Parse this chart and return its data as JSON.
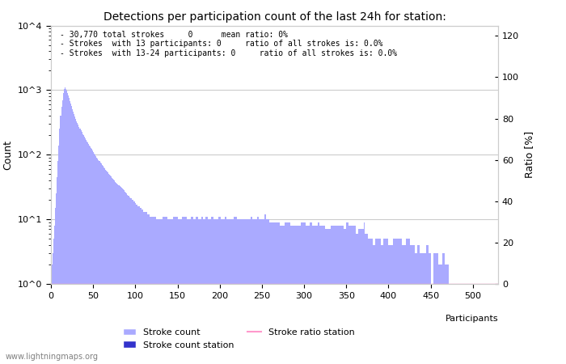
{
  "title": "Detections per participation count of the last 24h for station:",
  "xlabel": "Participants",
  "ylabel_left": "Count",
  "ylabel_right": "Ratio [%]",
  "annotation_lines": [
    "- 30,770 total strokes     0      mean ratio: 0%",
    "- Strokes  with 13 participants: 0     ratio of all strokes is: 0.0%",
    "- Strokes  with 13-24 participants: 0     ratio of all strokes is: 0.0%"
  ],
  "watermark": "www.lightningmaps.org",
  "bar_color": "#aaaaff",
  "bar_color_station": "#3333cc",
  "ratio_line_color": "#ff99cc",
  "grid_color": "#cccccc",
  "background_color": "#ffffff",
  "ylim_log": [
    1,
    10000
  ],
  "ylim_right": [
    0,
    125
  ],
  "xlim": [
    0,
    530
  ],
  "xticks": [
    0,
    50,
    100,
    150,
    200,
    250,
    300,
    350,
    400,
    450,
    500
  ],
  "ytick_vals": [
    1,
    10,
    100,
    1000,
    10000
  ],
  "ytick_labels": [
    "10^0",
    "10^1",
    "10^2",
    "10^3",
    "10^4"
  ],
  "right_yticks": [
    0,
    20,
    40,
    60,
    80,
    100,
    120
  ],
  "right_ytick_labels": [
    "0",
    "20",
    "40",
    "60",
    "80",
    "100",
    "120"
  ],
  "bar_data": [
    [
      1,
      2
    ],
    [
      2,
      3
    ],
    [
      3,
      5
    ],
    [
      4,
      8
    ],
    [
      5,
      15
    ],
    [
      6,
      25
    ],
    [
      7,
      45
    ],
    [
      8,
      80
    ],
    [
      9,
      140
    ],
    [
      10,
      250
    ],
    [
      11,
      400
    ],
    [
      12,
      550
    ],
    [
      13,
      700
    ],
    [
      14,
      900
    ],
    [
      15,
      1050
    ],
    [
      16,
      1100
    ],
    [
      17,
      1050
    ],
    [
      18,
      980
    ],
    [
      19,
      900
    ],
    [
      20,
      820
    ],
    [
      21,
      750
    ],
    [
      22,
      680
    ],
    [
      23,
      620
    ],
    [
      24,
      560
    ],
    [
      25,
      500
    ],
    [
      26,
      460
    ],
    [
      27,
      420
    ],
    [
      28,
      390
    ],
    [
      29,
      360
    ],
    [
      30,
      330
    ],
    [
      31,
      310
    ],
    [
      32,
      290
    ],
    [
      33,
      270
    ],
    [
      34,
      255
    ],
    [
      35,
      240
    ],
    [
      36,
      225
    ],
    [
      37,
      210
    ],
    [
      38,
      200
    ],
    [
      39,
      190
    ],
    [
      40,
      180
    ],
    [
      41,
      170
    ],
    [
      42,
      162
    ],
    [
      43,
      155
    ],
    [
      44,
      148
    ],
    [
      45,
      140
    ],
    [
      46,
      133
    ],
    [
      47,
      127
    ],
    [
      48,
      122
    ],
    [
      49,
      116
    ],
    [
      50,
      110
    ],
    [
      51,
      105
    ],
    [
      52,
      100
    ],
    [
      53,
      95
    ],
    [
      54,
      91
    ],
    [
      55,
      87
    ],
    [
      56,
      83
    ],
    [
      57,
      79
    ],
    [
      58,
      76
    ],
    [
      59,
      73
    ],
    [
      60,
      70
    ],
    [
      61,
      67
    ],
    [
      62,
      64
    ],
    [
      63,
      62
    ],
    [
      64,
      59
    ],
    [
      65,
      57
    ],
    [
      66,
      55
    ],
    [
      67,
      53
    ],
    [
      68,
      51
    ],
    [
      69,
      49
    ],
    [
      70,
      47
    ],
    [
      71,
      46
    ],
    [
      72,
      44
    ],
    [
      73,
      43
    ],
    [
      74,
      41
    ],
    [
      75,
      40
    ],
    [
      76,
      38
    ],
    [
      77,
      37
    ],
    [
      78,
      36
    ],
    [
      79,
      35
    ],
    [
      80,
      34
    ],
    [
      81,
      33
    ],
    [
      82,
      32
    ],
    [
      83,
      31
    ],
    [
      84,
      30
    ],
    [
      85,
      29
    ],
    [
      86,
      28
    ],
    [
      87,
      27
    ],
    [
      88,
      26
    ],
    [
      89,
      25
    ],
    [
      90,
      24
    ],
    [
      91,
      23
    ],
    [
      92,
      23
    ],
    [
      93,
      22
    ],
    [
      94,
      21
    ],
    [
      95,
      21
    ],
    [
      96,
      20
    ],
    [
      97,
      20
    ],
    [
      98,
      19
    ],
    [
      99,
      19
    ],
    [
      100,
      18
    ],
    [
      101,
      17
    ],
    [
      102,
      17
    ],
    [
      103,
      16
    ],
    [
      104,
      16
    ],
    [
      105,
      15
    ],
    [
      106,
      15
    ],
    [
      107,
      14
    ],
    [
      108,
      14
    ],
    [
      109,
      13
    ],
    [
      110,
      13
    ],
    [
      111,
      13
    ],
    [
      112,
      13
    ],
    [
      113,
      13
    ],
    [
      114,
      12
    ],
    [
      115,
      12
    ],
    [
      116,
      12
    ],
    [
      117,
      11
    ],
    [
      118,
      11
    ],
    [
      119,
      11
    ],
    [
      120,
      11
    ],
    [
      121,
      11
    ],
    [
      122,
      11
    ],
    [
      123,
      11
    ],
    [
      124,
      11
    ],
    [
      125,
      10
    ],
    [
      126,
      10
    ],
    [
      127,
      10
    ],
    [
      128,
      10
    ],
    [
      129,
      10
    ],
    [
      130,
      10
    ],
    [
      131,
      10
    ],
    [
      132,
      11
    ],
    [
      133,
      11
    ],
    [
      134,
      11
    ],
    [
      135,
      11
    ],
    [
      136,
      11
    ],
    [
      137,
      11
    ],
    [
      138,
      10
    ],
    [
      139,
      10
    ],
    [
      140,
      10
    ],
    [
      141,
      10
    ],
    [
      142,
      10
    ],
    [
      143,
      10
    ],
    [
      144,
      10
    ],
    [
      145,
      11
    ],
    [
      146,
      11
    ],
    [
      147,
      11
    ],
    [
      148,
      11
    ],
    [
      149,
      11
    ],
    [
      150,
      10
    ],
    [
      151,
      10
    ],
    [
      152,
      10
    ],
    [
      153,
      10
    ],
    [
      154,
      10
    ],
    [
      155,
      11
    ],
    [
      156,
      11
    ],
    [
      157,
      11
    ],
    [
      158,
      11
    ],
    [
      159,
      11
    ],
    [
      160,
      11
    ],
    [
      161,
      10
    ],
    [
      162,
      10
    ],
    [
      163,
      10
    ],
    [
      164,
      10
    ],
    [
      165,
      10
    ],
    [
      166,
      11
    ],
    [
      167,
      11
    ],
    [
      168,
      11
    ],
    [
      169,
      10
    ],
    [
      170,
      10
    ],
    [
      171,
      10
    ],
    [
      172,
      11
    ],
    [
      173,
      11
    ],
    [
      174,
      10
    ],
    [
      175,
      10
    ],
    [
      176,
      10
    ],
    [
      177,
      10
    ],
    [
      178,
      11
    ],
    [
      179,
      11
    ],
    [
      180,
      10
    ],
    [
      181,
      10
    ],
    [
      182,
      10
    ],
    [
      183,
      11
    ],
    [
      184,
      11
    ],
    [
      185,
      11
    ],
    [
      186,
      10
    ],
    [
      187,
      10
    ],
    [
      188,
      10
    ],
    [
      189,
      10
    ],
    [
      190,
      11
    ],
    [
      191,
      11
    ],
    [
      192,
      11
    ],
    [
      193,
      10
    ],
    [
      194,
      10
    ],
    [
      195,
      10
    ],
    [
      196,
      10
    ],
    [
      197,
      10
    ],
    [
      198,
      11
    ],
    [
      199,
      11
    ],
    [
      200,
      11
    ],
    [
      201,
      10
    ],
    [
      202,
      10
    ],
    [
      203,
      10
    ],
    [
      204,
      10
    ],
    [
      205,
      10
    ],
    [
      206,
      11
    ],
    [
      207,
      11
    ],
    [
      208,
      10
    ],
    [
      209,
      10
    ],
    [
      210,
      10
    ],
    [
      211,
      10
    ],
    [
      212,
      10
    ],
    [
      213,
      10
    ],
    [
      214,
      10
    ],
    [
      215,
      10
    ],
    [
      216,
      10
    ],
    [
      217,
      11
    ],
    [
      218,
      11
    ],
    [
      219,
      11
    ],
    [
      220,
      10
    ],
    [
      221,
      10
    ],
    [
      222,
      10
    ],
    [
      223,
      10
    ],
    [
      224,
      10
    ],
    [
      225,
      10
    ],
    [
      226,
      10
    ],
    [
      227,
      10
    ],
    [
      228,
      10
    ],
    [
      229,
      10
    ],
    [
      230,
      10
    ],
    [
      231,
      10
    ],
    [
      232,
      10
    ],
    [
      233,
      10
    ],
    [
      234,
      10
    ],
    [
      235,
      10
    ],
    [
      236,
      10
    ],
    [
      237,
      11
    ],
    [
      238,
      11
    ],
    [
      239,
      10
    ],
    [
      240,
      10
    ],
    [
      241,
      10
    ],
    [
      242,
      10
    ],
    [
      243,
      10
    ],
    [
      244,
      11
    ],
    [
      245,
      11
    ],
    [
      246,
      10
    ],
    [
      247,
      10
    ],
    [
      248,
      10
    ],
    [
      249,
      10
    ],
    [
      250,
      10
    ],
    [
      251,
      10
    ],
    [
      252,
      10
    ],
    [
      253,
      12
    ],
    [
      254,
      12
    ],
    [
      255,
      10
    ],
    [
      256,
      10
    ],
    [
      257,
      10
    ],
    [
      258,
      10
    ],
    [
      259,
      9
    ],
    [
      260,
      9
    ],
    [
      261,
      9
    ],
    [
      262,
      9
    ],
    [
      263,
      9
    ],
    [
      264,
      9
    ],
    [
      265,
      9
    ],
    [
      266,
      9
    ],
    [
      267,
      9
    ],
    [
      268,
      9
    ],
    [
      269,
      9
    ],
    [
      270,
      9
    ],
    [
      271,
      8
    ],
    [
      272,
      8
    ],
    [
      273,
      8
    ],
    [
      274,
      8
    ],
    [
      275,
      8
    ],
    [
      276,
      8
    ],
    [
      277,
      9
    ],
    [
      278,
      9
    ],
    [
      279,
      9
    ],
    [
      280,
      9
    ],
    [
      281,
      9
    ],
    [
      282,
      9
    ],
    [
      283,
      9
    ],
    [
      284,
      8
    ],
    [
      285,
      8
    ],
    [
      286,
      8
    ],
    [
      287,
      8
    ],
    [
      288,
      8
    ],
    [
      289,
      8
    ],
    [
      290,
      8
    ],
    [
      291,
      8
    ],
    [
      292,
      8
    ],
    [
      293,
      8
    ],
    [
      294,
      8
    ],
    [
      295,
      8
    ],
    [
      296,
      9
    ],
    [
      297,
      9
    ],
    [
      298,
      9
    ],
    [
      299,
      9
    ],
    [
      300,
      9
    ],
    [
      301,
      9
    ],
    [
      302,
      8
    ],
    [
      303,
      8
    ],
    [
      304,
      8
    ],
    [
      305,
      8
    ],
    [
      306,
      8
    ],
    [
      307,
      9
    ],
    [
      308,
      9
    ],
    [
      309,
      9
    ],
    [
      310,
      8
    ],
    [
      311,
      8
    ],
    [
      312,
      8
    ],
    [
      313,
      8
    ],
    [
      314,
      8
    ],
    [
      315,
      8
    ],
    [
      316,
      9
    ],
    [
      317,
      9
    ],
    [
      318,
      8
    ],
    [
      319,
      8
    ],
    [
      320,
      8
    ],
    [
      321,
      8
    ],
    [
      322,
      8
    ],
    [
      323,
      8
    ],
    [
      324,
      8
    ],
    [
      325,
      7
    ],
    [
      326,
      7
    ],
    [
      327,
      7
    ],
    [
      328,
      7
    ],
    [
      329,
      7
    ],
    [
      330,
      7
    ],
    [
      331,
      7
    ],
    [
      332,
      8
    ],
    [
      333,
      8
    ],
    [
      334,
      8
    ],
    [
      335,
      8
    ],
    [
      336,
      8
    ],
    [
      337,
      8
    ],
    [
      338,
      8
    ],
    [
      339,
      8
    ],
    [
      340,
      8
    ],
    [
      341,
      8
    ],
    [
      342,
      8
    ],
    [
      343,
      8
    ],
    [
      344,
      8
    ],
    [
      345,
      8
    ],
    [
      346,
      8
    ],
    [
      347,
      7
    ],
    [
      348,
      7
    ],
    [
      349,
      7
    ],
    [
      350,
      9
    ],
    [
      351,
      9
    ],
    [
      352,
      9
    ],
    [
      353,
      8
    ],
    [
      354,
      8
    ],
    [
      355,
      8
    ],
    [
      356,
      8
    ],
    [
      357,
      8
    ],
    [
      358,
      8
    ],
    [
      359,
      8
    ],
    [
      360,
      8
    ],
    [
      361,
      6
    ],
    [
      362,
      6
    ],
    [
      363,
      6
    ],
    [
      364,
      7
    ],
    [
      365,
      7
    ],
    [
      366,
      7
    ],
    [
      367,
      7
    ],
    [
      368,
      7
    ],
    [
      369,
      7
    ],
    [
      370,
      7
    ],
    [
      371,
      9
    ],
    [
      372,
      6
    ],
    [
      373,
      6
    ],
    [
      374,
      6
    ],
    [
      375,
      6
    ],
    [
      376,
      5
    ],
    [
      377,
      5
    ],
    [
      378,
      5
    ],
    [
      379,
      5
    ],
    [
      380,
      5
    ],
    [
      381,
      4
    ],
    [
      382,
      4
    ],
    [
      383,
      4
    ],
    [
      384,
      5
    ],
    [
      385,
      5
    ],
    [
      386,
      5
    ],
    [
      387,
      5
    ],
    [
      388,
      5
    ],
    [
      389,
      5
    ],
    [
      390,
      5
    ],
    [
      391,
      4
    ],
    [
      392,
      4
    ],
    [
      393,
      4
    ],
    [
      394,
      5
    ],
    [
      395,
      5
    ],
    [
      396,
      5
    ],
    [
      397,
      5
    ],
    [
      398,
      5
    ],
    [
      399,
      5
    ],
    [
      400,
      4
    ],
    [
      401,
      4
    ],
    [
      402,
      4
    ],
    [
      403,
      4
    ],
    [
      404,
      4
    ],
    [
      405,
      5
    ],
    [
      406,
      5
    ],
    [
      407,
      5
    ],
    [
      408,
      5
    ],
    [
      409,
      5
    ],
    [
      410,
      5
    ],
    [
      411,
      5
    ],
    [
      412,
      5
    ],
    [
      413,
      5
    ],
    [
      414,
      5
    ],
    [
      415,
      5
    ],
    [
      416,
      4
    ],
    [
      417,
      4
    ],
    [
      418,
      4
    ],
    [
      419,
      4
    ],
    [
      420,
      4
    ],
    [
      421,
      5
    ],
    [
      422,
      5
    ],
    [
      423,
      5
    ],
    [
      424,
      5
    ],
    [
      425,
      5
    ],
    [
      426,
      4
    ],
    [
      427,
      4
    ],
    [
      428,
      4
    ],
    [
      429,
      4
    ],
    [
      430,
      4
    ],
    [
      431,
      3
    ],
    [
      432,
      3
    ],
    [
      433,
      3
    ],
    [
      434,
      4
    ],
    [
      435,
      4
    ],
    [
      436,
      4
    ],
    [
      437,
      3
    ],
    [
      438,
      3
    ],
    [
      439,
      3
    ],
    [
      440,
      3
    ],
    [
      441,
      3
    ],
    [
      442,
      3
    ],
    [
      443,
      3
    ],
    [
      444,
      3
    ],
    [
      445,
      4
    ],
    [
      446,
      4
    ],
    [
      447,
      4
    ],
    [
      448,
      3
    ],
    [
      449,
      3
    ],
    [
      450,
      1
    ],
    [
      451,
      1
    ],
    [
      452,
      1
    ],
    [
      453,
      3
    ],
    [
      454,
      3
    ],
    [
      455,
      3
    ],
    [
      456,
      3
    ],
    [
      457,
      3
    ],
    [
      458,
      3
    ],
    [
      459,
      2
    ],
    [
      460,
      2
    ],
    [
      461,
      2
    ],
    [
      462,
      2
    ],
    [
      463,
      2
    ],
    [
      464,
      3
    ],
    [
      465,
      3
    ],
    [
      466,
      3
    ],
    [
      467,
      2
    ],
    [
      468,
      2
    ],
    [
      469,
      2
    ],
    [
      470,
      2
    ],
    [
      471,
      2
    ],
    [
      472,
      1
    ],
    [
      473,
      1
    ],
    [
      474,
      1
    ],
    [
      475,
      1
    ],
    [
      476,
      1
    ],
    [
      477,
      1
    ],
    [
      478,
      1
    ],
    [
      479,
      1
    ],
    [
      480,
      1
    ],
    [
      481,
      1
    ],
    [
      482,
      1
    ],
    [
      483,
      1
    ],
    [
      484,
      1
    ],
    [
      485,
      1
    ],
    [
      486,
      1
    ],
    [
      487,
      1
    ],
    [
      488,
      1
    ],
    [
      489,
      1
    ],
    [
      490,
      1
    ],
    [
      491,
      1
    ],
    [
      492,
      1
    ],
    [
      493,
      1
    ],
    [
      494,
      1
    ],
    [
      495,
      1
    ],
    [
      496,
      1
    ],
    [
      497,
      1
    ],
    [
      498,
      1
    ],
    [
      499,
      1
    ],
    [
      500,
      1
    ],
    [
      510,
      1
    ],
    [
      520,
      1
    ]
  ]
}
